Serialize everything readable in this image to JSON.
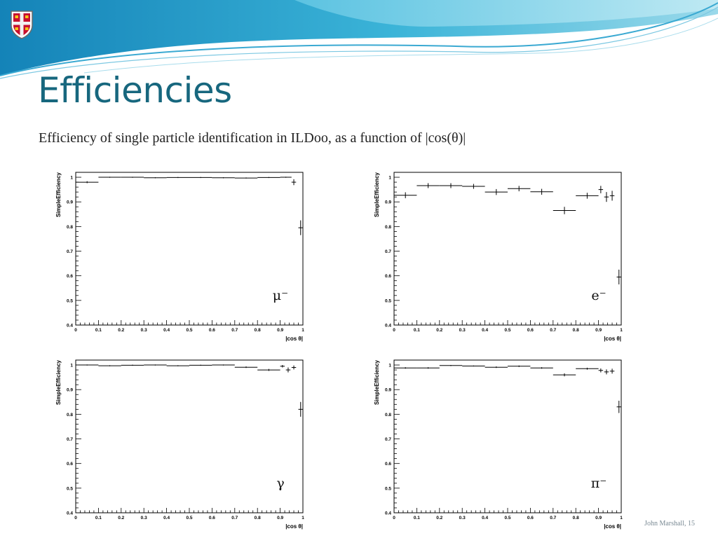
{
  "slide": {
    "title": "Efficiencies",
    "subtitle": "Efficiency of single particle identification in ILDoo, as a function of |cos(θ)|",
    "footer": "John Marshall, 15"
  },
  "colors": {
    "title": "#17677e",
    "banner_dark": "#1b9fc7",
    "banner_light": "#8fd6ea"
  },
  "icons": {
    "logo": "university-crest-icon"
  },
  "chart_data": [
    {
      "type": "scatter",
      "particle_label": "μ⁻",
      "xlabel": "|cos θ|",
      "ylabel": "SimpleEfficiency",
      "xlim": [
        0,
        1
      ],
      "ylim": [
        0.4,
        1.02
      ],
      "xticks": [
        "0",
        "0.1",
        "0.2",
        "0.3",
        "0.4",
        "0.5",
        "0.6",
        "0.7",
        "0.8",
        "0.9",
        "1"
      ],
      "yticks": [
        "0.4",
        "0.5",
        "0.6",
        "0.7",
        "0.8",
        "0.9",
        "1"
      ],
      "points": [
        {
          "x": 0.05,
          "xerr": 0.05,
          "y": 0.98,
          "yerr": 0.004
        },
        {
          "x": 0.15,
          "xerr": 0.05,
          "y": 1.0,
          "yerr": 0.002
        },
        {
          "x": 0.25,
          "xerr": 0.05,
          "y": 1.0,
          "yerr": 0.002
        },
        {
          "x": 0.35,
          "xerr": 0.05,
          "y": 0.998,
          "yerr": 0.002
        },
        {
          "x": 0.45,
          "xerr": 0.05,
          "y": 0.999,
          "yerr": 0.002
        },
        {
          "x": 0.55,
          "xerr": 0.05,
          "y": 0.999,
          "yerr": 0.002
        },
        {
          "x": 0.65,
          "xerr": 0.05,
          "y": 0.998,
          "yerr": 0.002
        },
        {
          "x": 0.75,
          "xerr": 0.05,
          "y": 0.997,
          "yerr": 0.002
        },
        {
          "x": 0.85,
          "xerr": 0.05,
          "y": 0.999,
          "yerr": 0.002
        },
        {
          "x": 0.925,
          "xerr": 0.025,
          "y": 1.0,
          "yerr": 0.002
        },
        {
          "x": 0.96,
          "xerr": 0.01,
          "y": 0.98,
          "yerr": 0.012
        },
        {
          "x": 0.99,
          "xerr": 0.01,
          "y": 0.795,
          "yerr": 0.03
        }
      ]
    },
    {
      "type": "scatter",
      "particle_label": "e⁻",
      "xlabel": "|cos θ|",
      "ylabel": "SimpleEfficiency",
      "xlim": [
        0,
        1
      ],
      "ylim": [
        0.4,
        1.02
      ],
      "xticks": [
        "0",
        "0.1",
        "0.2",
        "0.3",
        "0.4",
        "0.5",
        "0.6",
        "0.7",
        "0.8",
        "0.9",
        "1"
      ],
      "yticks": [
        "0.4",
        "0.5",
        "0.6",
        "0.7",
        "0.8",
        "0.9",
        "1"
      ],
      "points": [
        {
          "x": 0.05,
          "xerr": 0.05,
          "y": 0.927,
          "yerr": 0.012
        },
        {
          "x": 0.15,
          "xerr": 0.05,
          "y": 0.966,
          "yerr": 0.01
        },
        {
          "x": 0.25,
          "xerr": 0.05,
          "y": 0.966,
          "yerr": 0.01
        },
        {
          "x": 0.35,
          "xerr": 0.05,
          "y": 0.963,
          "yerr": 0.01
        },
        {
          "x": 0.45,
          "xerr": 0.05,
          "y": 0.94,
          "yerr": 0.012
        },
        {
          "x": 0.55,
          "xerr": 0.05,
          "y": 0.954,
          "yerr": 0.011
        },
        {
          "x": 0.65,
          "xerr": 0.05,
          "y": 0.941,
          "yerr": 0.012
        },
        {
          "x": 0.75,
          "xerr": 0.05,
          "y": 0.865,
          "yerr": 0.015
        },
        {
          "x": 0.85,
          "xerr": 0.05,
          "y": 0.925,
          "yerr": 0.012
        },
        {
          "x": 0.91,
          "xerr": 0.01,
          "y": 0.95,
          "yerr": 0.015
        },
        {
          "x": 0.935,
          "xerr": 0.01,
          "y": 0.92,
          "yerr": 0.02
        },
        {
          "x": 0.96,
          "xerr": 0.01,
          "y": 0.925,
          "yerr": 0.02
        },
        {
          "x": 0.99,
          "xerr": 0.01,
          "y": 0.595,
          "yerr": 0.03
        }
      ]
    },
    {
      "type": "scatter",
      "particle_label": "γ",
      "xlabel": "|cos θ|",
      "ylabel": "SimpleEfficiency",
      "xlim": [
        0,
        1
      ],
      "ylim": [
        0.4,
        1.02
      ],
      "xticks": [
        "0",
        "0.1",
        "0.2",
        "0.3",
        "0.4",
        "0.5",
        "0.6",
        "0.7",
        "0.8",
        "0.9",
        "1"
      ],
      "yticks": [
        "0.4",
        "0.5",
        "0.6",
        "0.7",
        "0.8",
        "0.9",
        "1"
      ],
      "points": [
        {
          "x": 0.05,
          "xerr": 0.05,
          "y": 1.0,
          "yerr": 0.002
        },
        {
          "x": 0.15,
          "xerr": 0.05,
          "y": 0.997,
          "yerr": 0.002
        },
        {
          "x": 0.25,
          "xerr": 0.05,
          "y": 0.999,
          "yerr": 0.002
        },
        {
          "x": 0.35,
          "xerr": 0.05,
          "y": 1.0,
          "yerr": 0.002
        },
        {
          "x": 0.45,
          "xerr": 0.05,
          "y": 0.997,
          "yerr": 0.002
        },
        {
          "x": 0.55,
          "xerr": 0.05,
          "y": 0.999,
          "yerr": 0.002
        },
        {
          "x": 0.65,
          "xerr": 0.05,
          "y": 1.0,
          "yerr": 0.002
        },
        {
          "x": 0.75,
          "xerr": 0.05,
          "y": 0.991,
          "yerr": 0.003
        },
        {
          "x": 0.85,
          "xerr": 0.05,
          "y": 0.98,
          "yerr": 0.004
        },
        {
          "x": 0.91,
          "xerr": 0.01,
          "y": 0.995,
          "yerr": 0.005
        },
        {
          "x": 0.935,
          "xerr": 0.01,
          "y": 0.98,
          "yerr": 0.01
        },
        {
          "x": 0.96,
          "xerr": 0.01,
          "y": 0.99,
          "yerr": 0.008
        },
        {
          "x": 0.99,
          "xerr": 0.01,
          "y": 0.82,
          "yerr": 0.03
        }
      ]
    },
    {
      "type": "scatter",
      "particle_label": "π⁻",
      "xlabel": "|cos θ|",
      "ylabel": "SimpleEfficiency",
      "xlim": [
        0,
        1
      ],
      "ylim": [
        0.4,
        1.02
      ],
      "xticks": [
        "0",
        "0.1",
        "0.2",
        "0.3",
        "0.4",
        "0.5",
        "0.6",
        "0.7",
        "0.8",
        "0.9",
        "1"
      ],
      "yticks": [
        "0.4",
        "0.5",
        "0.6",
        "0.7",
        "0.8",
        "0.9",
        "1"
      ],
      "points": [
        {
          "x": 0.05,
          "xerr": 0.05,
          "y": 0.988,
          "yerr": 0.003
        },
        {
          "x": 0.15,
          "xerr": 0.05,
          "y": 0.988,
          "yerr": 0.003
        },
        {
          "x": 0.25,
          "xerr": 0.05,
          "y": 0.998,
          "yerr": 0.002
        },
        {
          "x": 0.35,
          "xerr": 0.05,
          "y": 0.996,
          "yerr": 0.002
        },
        {
          "x": 0.45,
          "xerr": 0.05,
          "y": 0.991,
          "yerr": 0.003
        },
        {
          "x": 0.55,
          "xerr": 0.05,
          "y": 0.995,
          "yerr": 0.003
        },
        {
          "x": 0.65,
          "xerr": 0.05,
          "y": 0.988,
          "yerr": 0.003
        },
        {
          "x": 0.75,
          "xerr": 0.05,
          "y": 0.96,
          "yerr": 0.006
        },
        {
          "x": 0.85,
          "xerr": 0.05,
          "y": 0.985,
          "yerr": 0.004
        },
        {
          "x": 0.91,
          "xerr": 0.01,
          "y": 0.978,
          "yerr": 0.008
        },
        {
          "x": 0.935,
          "xerr": 0.01,
          "y": 0.972,
          "yerr": 0.01
        },
        {
          "x": 0.96,
          "xerr": 0.01,
          "y": 0.975,
          "yerr": 0.01
        },
        {
          "x": 0.99,
          "xerr": 0.01,
          "y": 0.83,
          "yerr": 0.025
        }
      ]
    }
  ]
}
